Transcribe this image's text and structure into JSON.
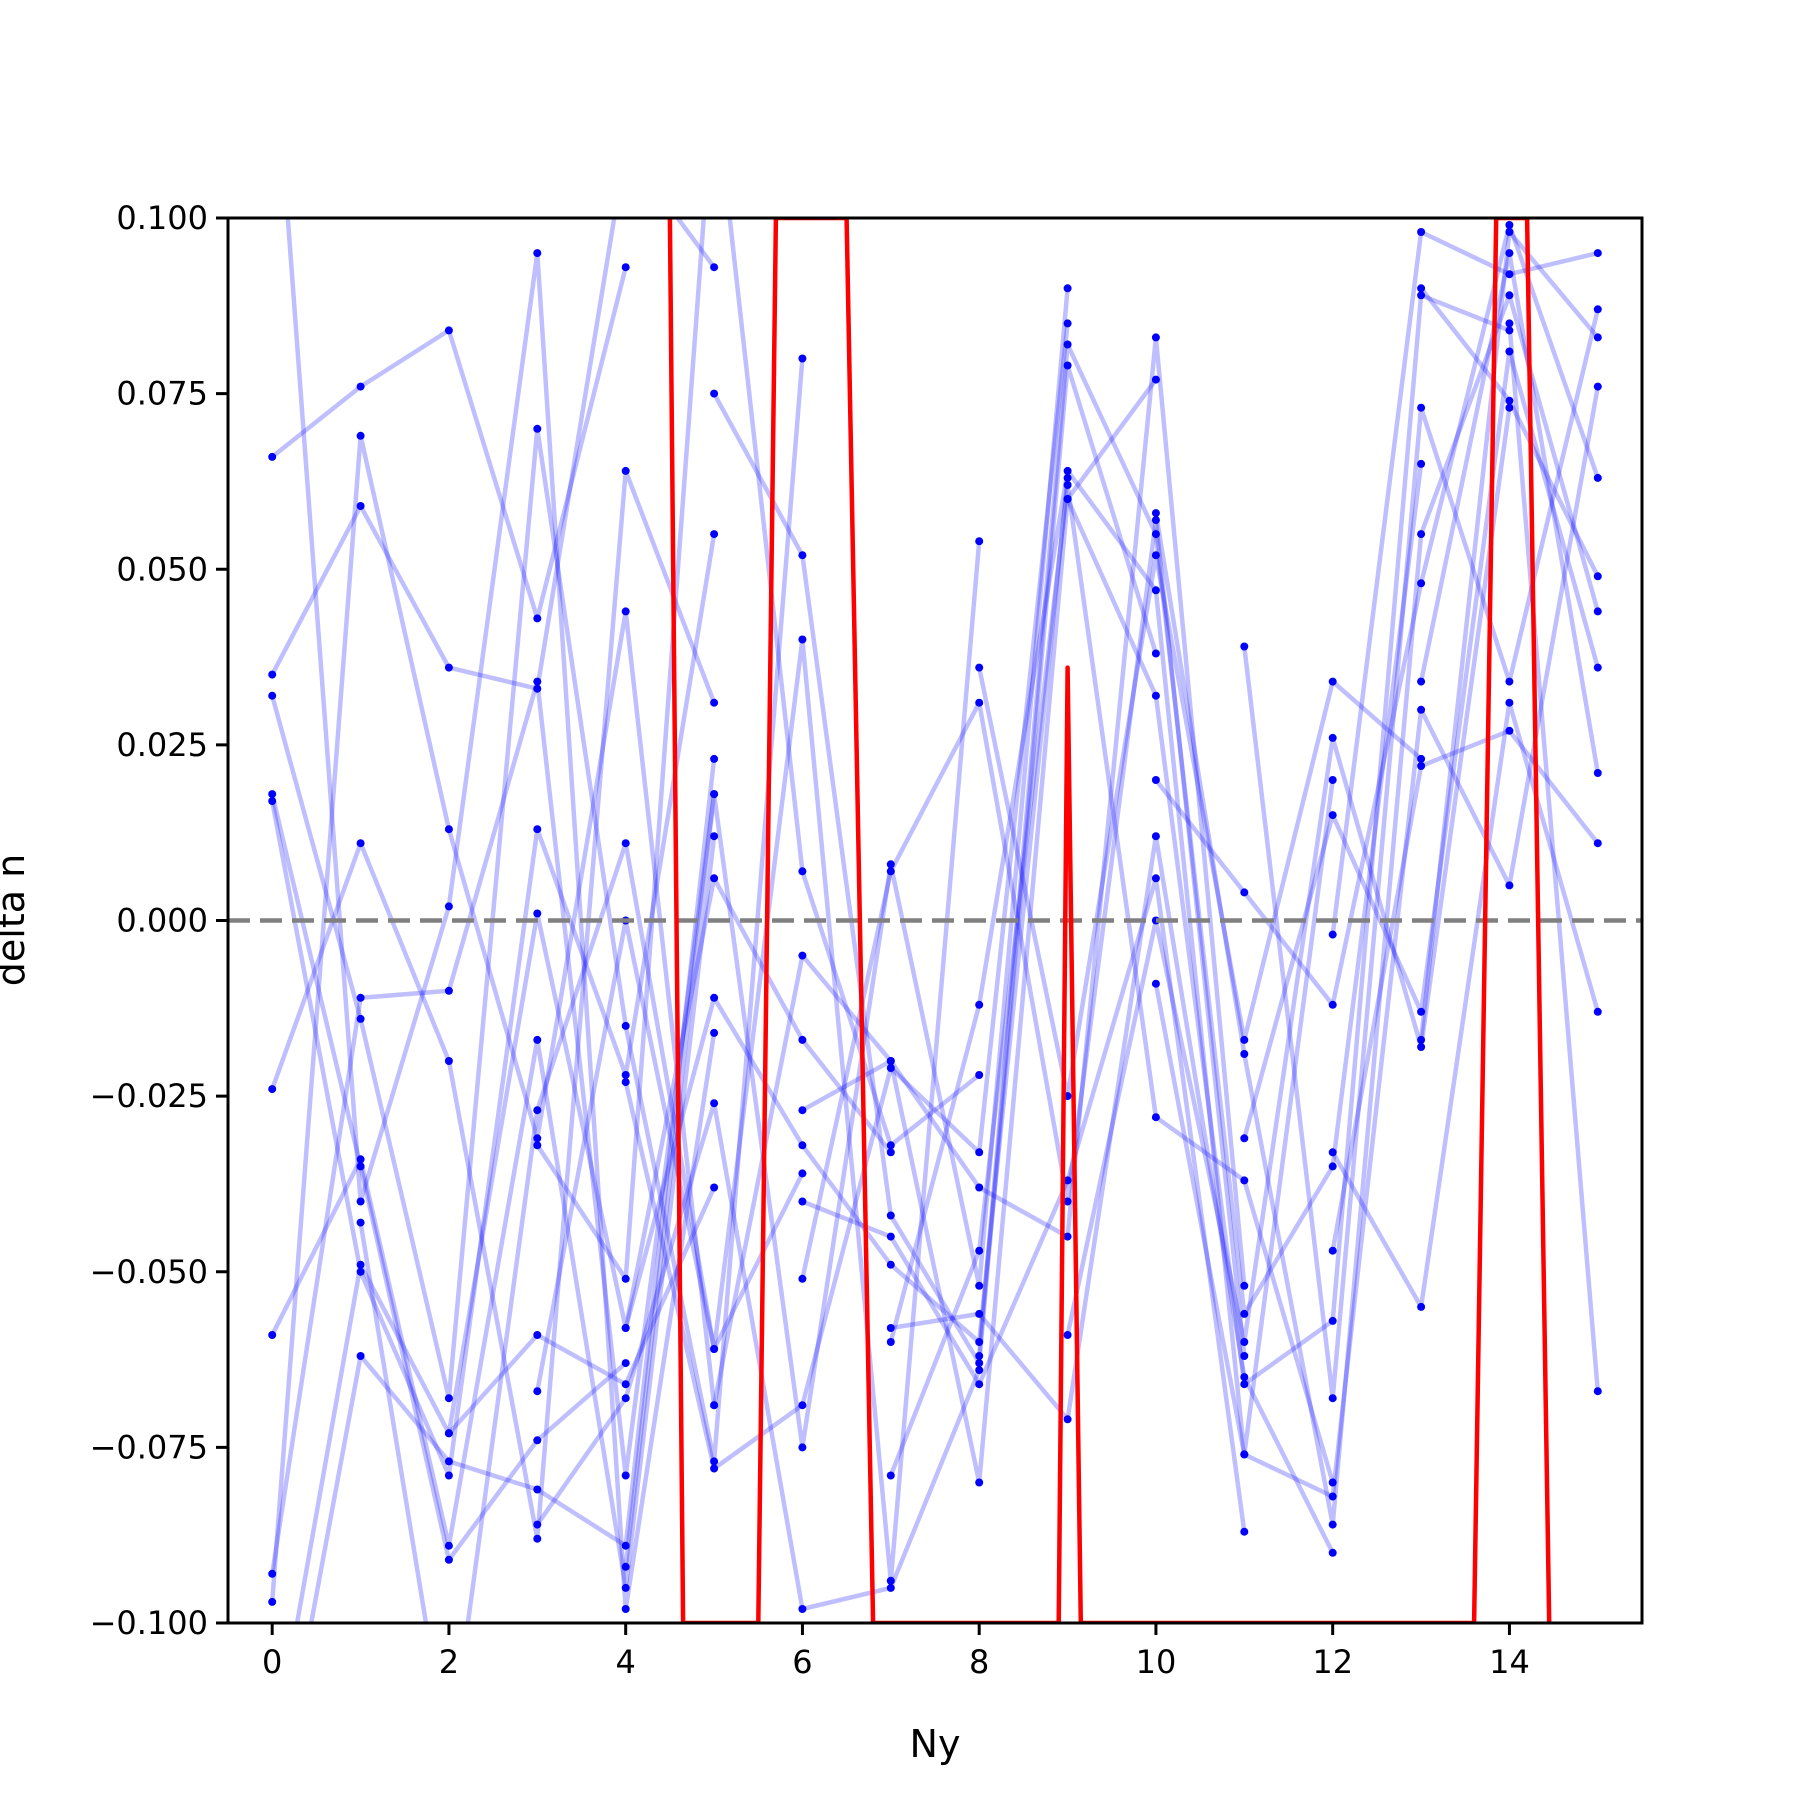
{
  "chart_data": {
    "type": "line",
    "title": "",
    "xlabel": "Ny",
    "ylabel": "delta n",
    "xlim": [
      -0.5,
      15.5
    ],
    "ylim": [
      -0.1,
      0.1
    ],
    "x_ticks": [
      0,
      2,
      4,
      6,
      8,
      10,
      12,
      14
    ],
    "x_tick_labels": [
      "0",
      "2",
      "4",
      "6",
      "8",
      "10",
      "12",
      "14"
    ],
    "y_ticks": [
      0.1,
      0.075,
      0.05,
      0.025,
      0.0,
      -0.025,
      -0.05,
      -0.075,
      -0.1
    ],
    "y_tick_labels": [
      "0.100",
      "0.075",
      "0.050",
      "0.025",
      "0.000",
      "−0.025",
      "−0.050",
      "−0.075",
      "−0.100"
    ],
    "reference_line": {
      "y": 0.0,
      "style": "dashed",
      "color": "#808080"
    },
    "colors": {
      "samples": "#0000ff",
      "mean": "#ff0000"
    },
    "grid": false,
    "legend": "none",
    "red_line": {
      "x": [
        4.5,
        4.65,
        5.5,
        5.7,
        6.5,
        6.8,
        8.9,
        9.0,
        9.15,
        13.6,
        13.85,
        14.2,
        14.45
      ],
      "y": [
        0.1,
        -0.1,
        -0.1,
        0.1,
        0.1,
        -0.1,
        -0.1,
        0.036,
        -0.1,
        -0.1,
        0.1,
        0.1,
        -0.1
      ]
    },
    "blue_traces": [
      {
        "x": [
          0,
          1,
          2,
          3,
          4
        ],
        "y": [
          0.066,
          0.076,
          0.084,
          0.043,
          0.093
        ]
      },
      {
        "x": [
          0,
          1,
          2,
          3,
          4,
          5
        ],
        "y": [
          0.035,
          0.059,
          0.036,
          0.033,
          0.11,
          0.093
        ]
      },
      {
        "x": [
          0,
          1,
          2,
          3,
          4,
          5,
          6
        ],
        "y": [
          0.032,
          -0.014,
          -0.068,
          0.07,
          -0.015,
          -0.077,
          0.08
        ]
      },
      {
        "x": [
          0,
          1,
          2,
          3,
          4
        ],
        "y": [
          0.018,
          -0.035,
          -0.091,
          -0.074,
          -0.063
        ]
      },
      {
        "x": [
          0,
          1,
          2,
          3,
          4,
          5
        ],
        "y": [
          0.017,
          -0.05,
          -0.079,
          0.013,
          -0.022,
          0.055
        ]
      },
      {
        "x": [
          0,
          1,
          2,
          3,
          4,
          5
        ],
        "y": [
          -0.024,
          0.011,
          -0.02,
          -0.088,
          0.064,
          0.031
        ]
      },
      {
        "x": [
          0,
          1,
          2,
          3,
          4,
          5
        ],
        "y": [
          -0.059,
          -0.034,
          -0.089,
          -0.017,
          -0.095,
          0.012
        ]
      },
      {
        "x": [
          0,
          1,
          2,
          3,
          4,
          5
        ],
        "y": [
          -0.093,
          -0.011,
          -0.01,
          0.034,
          -0.079,
          0.018
        ]
      },
      {
        "x": [
          0,
          1,
          2,
          3,
          4,
          5
        ],
        "y": [
          -0.097,
          0.069,
          0.013,
          -0.031,
          0.044,
          -0.069
        ]
      },
      {
        "x": [
          0,
          1,
          2,
          3,
          4,
          5
        ],
        "y": [
          -0.12,
          -0.049,
          -0.073,
          -0.059,
          -0.066,
          -0.038
        ]
      },
      {
        "x": [
          0,
          1,
          2,
          3,
          4,
          5
        ],
        "y": [
          -0.13,
          -0.062,
          -0.077,
          -0.081,
          -0.089,
          0.023
        ]
      },
      {
        "x": [
          0,
          1,
          2,
          3,
          4,
          5
        ],
        "y": [
          0.13,
          -0.04,
          0.002,
          0.095,
          -0.098,
          -0.016
        ]
      },
      {
        "x": [
          1,
          2,
          3,
          4,
          5,
          6
        ],
        "y": [
          -0.043,
          -0.12,
          -0.027,
          0.011,
          -0.061,
          -0.036
        ]
      },
      {
        "x": [
          2,
          3,
          4,
          5,
          6,
          7
        ],
        "y": [
          -0.073,
          0.001,
          -0.058,
          0.006,
          -0.017,
          -0.033
        ]
      },
      {
        "x": [
          3,
          4,
          5,
          6,
          7,
          8
        ],
        "y": [
          -0.032,
          -0.051,
          0.12,
          0.007,
          -0.032,
          -0.022
        ]
      },
      {
        "x": [
          3,
          4,
          5,
          6,
          7,
          8
        ],
        "y": [
          -0.067,
          0.0,
          -0.061,
          0.04,
          -0.094,
          0.054
        ]
      },
      {
        "x": [
          3,
          4,
          5,
          6,
          7,
          8
        ],
        "y": [
          -0.086,
          -0.068,
          -0.026,
          -0.098,
          -0.095,
          -0.064
        ]
      },
      {
        "x": [
          4,
          5,
          6,
          7,
          8,
          9
        ],
        "y": [
          -0.023,
          -0.078,
          -0.069,
          -0.021,
          -0.033,
          0.085
        ]
      },
      {
        "x": [
          4,
          5,
          6,
          7,
          8,
          9
        ],
        "y": [
          -0.058,
          -0.011,
          -0.032,
          -0.049,
          -0.06,
          0.063
        ]
      },
      {
        "x": [
          4,
          5,
          6,
          7,
          8,
          9
        ],
        "y": [
          -0.092,
          0.018,
          -0.075,
          0.008,
          -0.052,
          0.09
        ]
      },
      {
        "x": [
          5,
          6,
          7,
          8,
          9,
          10
        ],
        "y": [
          0.075,
          0.052,
          -0.042,
          -0.063,
          0.079,
          0.038
        ]
      },
      {
        "x": [
          5,
          6,
          7,
          8,
          9,
          10
        ],
        "y": [
          -0.069,
          -0.005,
          -0.02,
          -0.08,
          0.06,
          0.077
        ]
      },
      {
        "x": [
          6,
          7,
          8,
          9,
          10,
          11
        ],
        "y": [
          -0.027,
          -0.02,
          -0.038,
          -0.045,
          0.083,
          -0.052
        ]
      },
      {
        "x": [
          6,
          7,
          8,
          9,
          10,
          11
        ],
        "y": [
          -0.04,
          -0.045,
          -0.066,
          -0.037,
          0.006,
          -0.087
        ]
      },
      {
        "x": [
          6,
          7,
          8,
          9,
          10,
          11
        ],
        "y": [
          -0.051,
          0.007,
          0.031,
          -0.04,
          0.057,
          -0.062
        ]
      },
      {
        "x": [
          7,
          8,
          9,
          10,
          11,
          12
        ],
        "y": [
          -0.06,
          -0.012,
          0.064,
          0.047,
          -0.076,
          0.02
        ]
      },
      {
        "x": [
          7,
          8,
          9,
          10,
          11,
          12
        ],
        "y": [
          -0.058,
          -0.056,
          -0.071,
          0.012,
          -0.065,
          -0.09
        ]
      },
      {
        "x": [
          7,
          8,
          9,
          10,
          11,
          12
        ],
        "y": [
          -0.079,
          -0.047,
          0.062,
          -0.028,
          -0.037,
          -0.08
        ]
      },
      {
        "x": [
          8,
          9,
          10,
          11,
          12,
          13
        ],
        "y": [
          0.036,
          -0.025,
          0.052,
          -0.017,
          0.034,
          0.023
        ]
      },
      {
        "x": [
          8,
          9,
          10,
          11,
          12,
          13
        ],
        "y": [
          -0.062,
          0.082,
          0.055,
          -0.056,
          -0.035,
          0.065
        ]
      },
      {
        "x": [
          9,
          10,
          11,
          12,
          13,
          14
        ],
        "y": [
          -0.059,
          0.0,
          -0.06,
          0.026,
          -0.018,
          0.073
        ]
      },
      {
        "x": [
          9,
          10,
          11,
          12,
          13,
          14
        ],
        "y": [
          0.06,
          0.032,
          -0.066,
          -0.057,
          0.089,
          0.084
        ]
      },
      {
        "x": [
          10,
          11,
          12,
          13,
          14,
          15
        ],
        "y": [
          -0.009,
          -0.076,
          -0.082,
          0.03,
          0.005,
          0.076
        ]
      },
      {
        "x": [
          10,
          11,
          12,
          13,
          14,
          15
        ],
        "y": [
          0.02,
          0.004,
          -0.012,
          0.048,
          0.099,
          0.063
        ]
      },
      {
        "x": [
          10,
          11,
          12,
          13,
          14,
          15
        ],
        "y": [
          0.058,
          -0.019,
          -0.086,
          0.055,
          0.089,
          0.044
        ]
      },
      {
        "x": [
          11,
          12,
          13,
          14,
          15
        ],
        "y": [
          -0.031,
          0.015,
          -0.013,
          0.081,
          0.036
        ]
      },
      {
        "x": [
          11,
          12,
          13,
          14,
          15
        ],
        "y": [
          0.039,
          -0.068,
          0.073,
          0.034,
          0.087
        ]
      },
      {
        "x": [
          12,
          13,
          14,
          15
        ],
        "y": [
          -0.002,
          0.098,
          0.092,
          0.095
        ]
      },
      {
        "x": [
          12,
          13,
          14,
          15
        ],
        "y": [
          -0.047,
          0.022,
          0.027,
          0.011
        ]
      },
      {
        "x": [
          12,
          13,
          14,
          15
        ],
        "y": [
          -0.033,
          -0.055,
          0.031,
          -0.013
        ]
      },
      {
        "x": [
          13,
          14,
          15
        ],
        "y": [
          0.09,
          0.074,
          0.049
        ]
      },
      {
        "x": [
          13,
          14,
          15
        ],
        "y": [
          0.034,
          0.095,
          0.021
        ]
      },
      {
        "x": [
          14,
          15
        ],
        "y": [
          0.085,
          -0.067
        ]
      },
      {
        "x": [
          13,
          14,
          15
        ],
        "y": [
          -0.017,
          0.098,
          0.083
        ]
      }
    ]
  }
}
